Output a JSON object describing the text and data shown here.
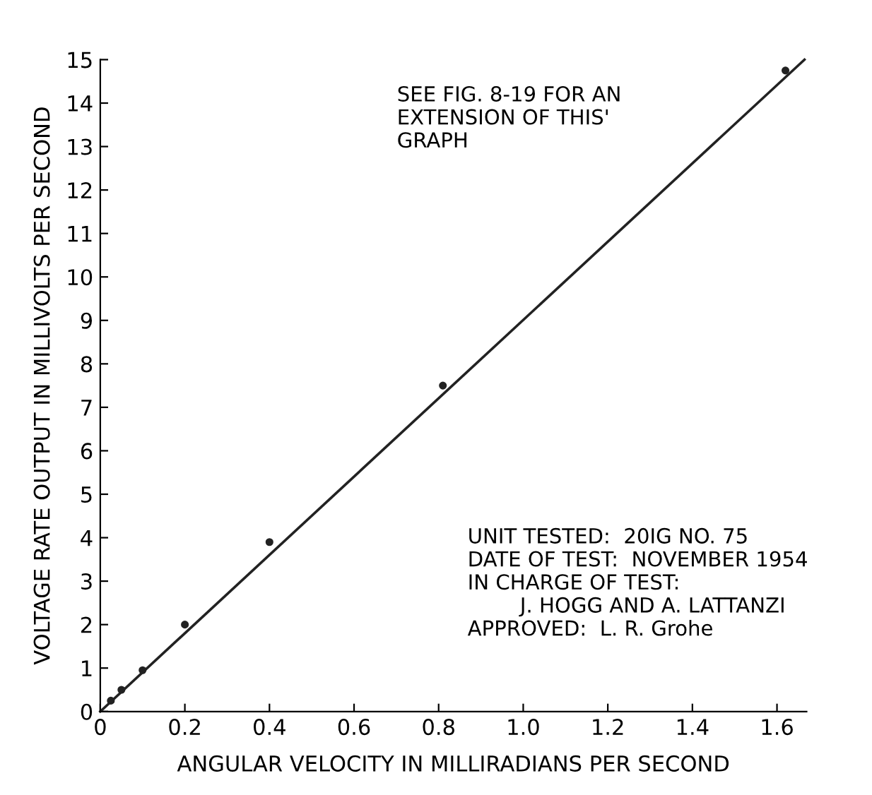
{
  "chart_data": {
    "type": "scatter",
    "xlabel": "ANGULAR VELOCITY IN MILLIRADIANS PER SECOND",
    "ylabel": "VOLTAGE RATE OUTPUT IN MILLIVOLTS PER SECOND",
    "series": [
      {
        "color": "#222222",
        "marker": "circle",
        "x": [
          0.025,
          0.05,
          0.1,
          0.2,
          0.4,
          0.81,
          1.62
        ],
        "values": [
          0.25,
          0.5,
          0.95,
          2.0,
          3.9,
          7.5,
          14.75
        ]
      },
      {
        "type": "line",
        "color": "#222222",
        "line_style": "solid",
        "x": [
          0,
          1.665
        ],
        "values": [
          0,
          15
        ]
      }
    ],
    "xlim": [
      0,
      1.67
    ],
    "ylim": [
      0,
      15
    ],
    "xticks": [
      0,
      0.2,
      0.4,
      0.6,
      0.8,
      {
        "value": 1.0,
        "label": "1.0"
      },
      1.2,
      1.4,
      1.6
    ],
    "yticks": [
      0,
      1,
      2,
      3,
      4,
      5,
      6,
      7,
      8,
      9,
      10,
      11,
      12,
      13,
      14,
      15
    ],
    "grid": false,
    "annotations": [
      "SEE FIG. 8-19 FOR AN\nEXTENSION OF THIS'\nGRAPH",
      "UNIT TESTED:  20IG NO. 75\nDATE OF TEST:  NOVEMBER 1954\nIN CHARGE OF TEST:\n        J. HOGG AND A. LATTANZI\nAPPROVED:  L. R. Grohe"
    ]
  }
}
